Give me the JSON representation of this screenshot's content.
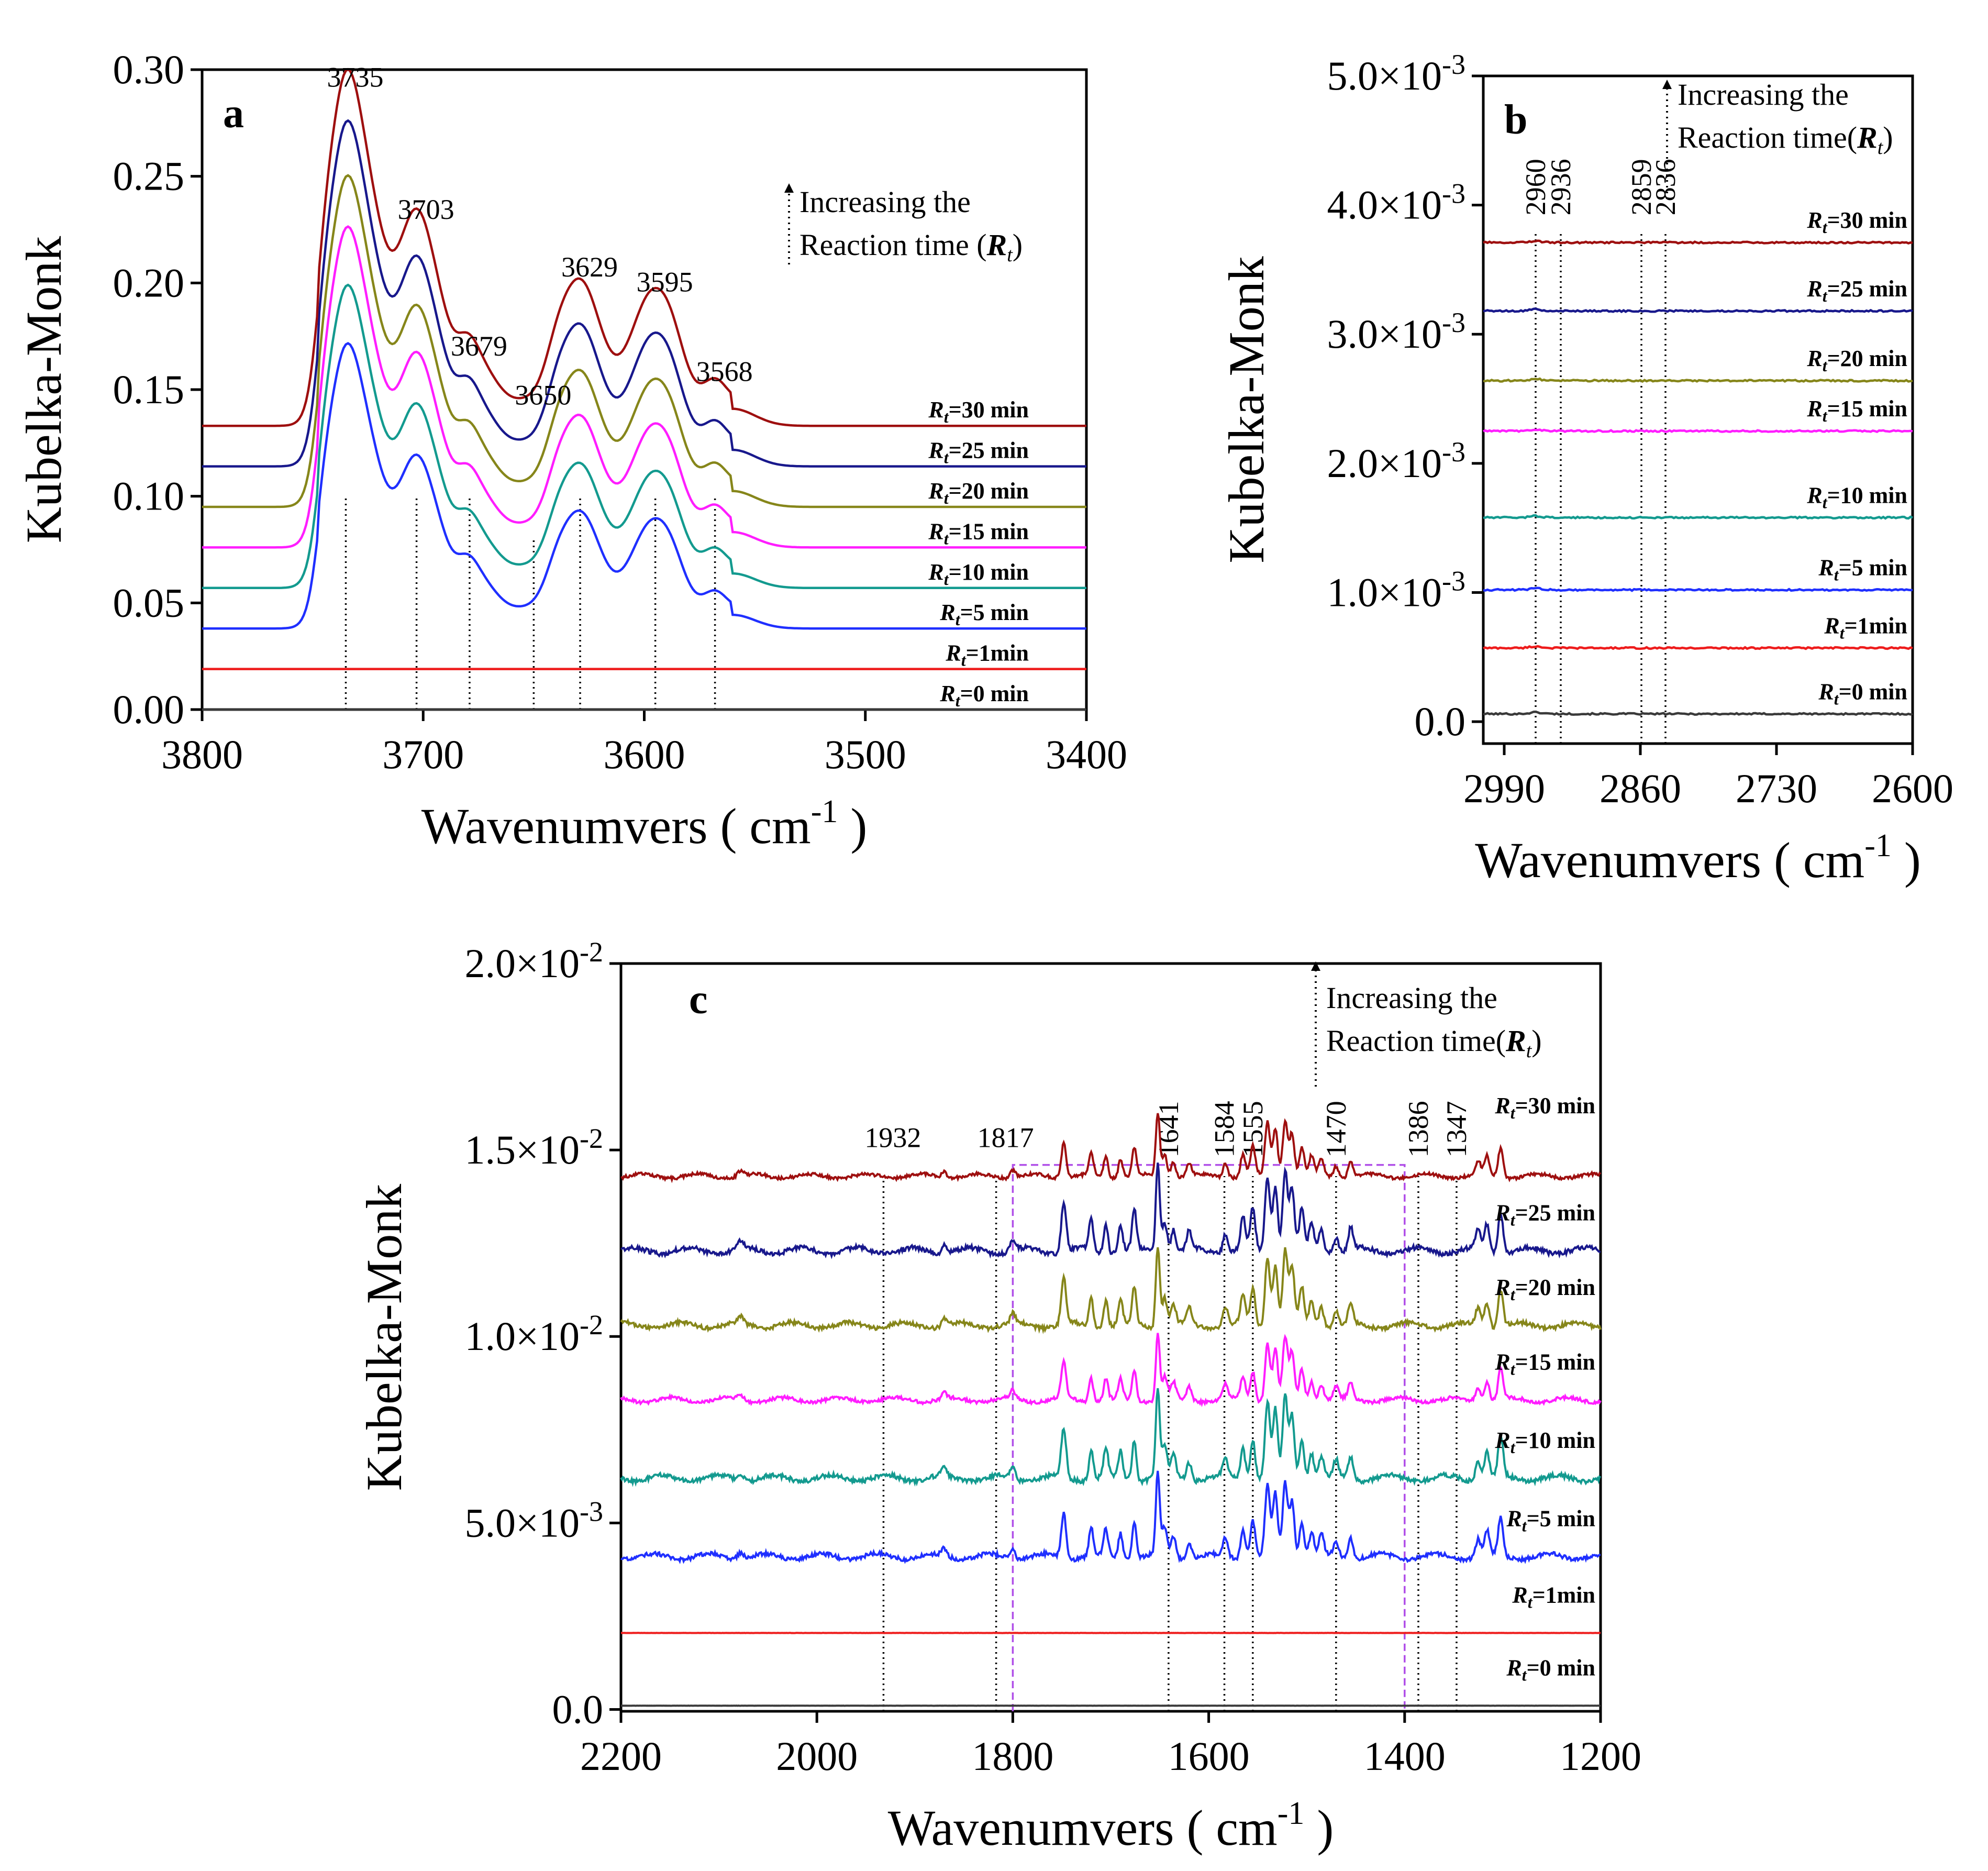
{
  "chart_data": [
    {
      "id": "a",
      "type": "line",
      "panel_label": "a",
      "xlabel": "Wavenumvers ( cm",
      "xlabel_sup": "-1",
      "xlabel_end": " )",
      "ylabel": "Kubelka-Monk",
      "xlim": [
        3800,
        3400
      ],
      "ylim": [
        0,
        0.3
      ],
      "xticks": [
        {
          "v": 3800,
          "t": "3800"
        },
        {
          "v": 3700,
          "t": "3700"
        },
        {
          "v": 3600,
          "t": "3600"
        },
        {
          "v": 3500,
          "t": "3500"
        },
        {
          "v": 3400,
          "t": "3400"
        }
      ],
      "yticks": [
        {
          "v": 0,
          "t": "0.00"
        },
        {
          "v": 0.05,
          "t": "0.05"
        },
        {
          "v": 0.1,
          "t": "0.10"
        },
        {
          "v": 0.15,
          "t": "0.15"
        },
        {
          "v": 0.2,
          "t": "0.20"
        },
        {
          "v": 0.25,
          "t": "0.25"
        },
        {
          "v": 0.3,
          "t": "0.30"
        }
      ],
      "annotation": {
        "line1": "Increasing the",
        "line2": "Reaction time (",
        "italic": "R",
        "sub": "t",
        "close": ")"
      },
      "peaks": [
        {
          "x": 3735,
          "label": "3735",
          "y_label": 0.292
        },
        {
          "x": 3703,
          "label": "3703",
          "y_label": 0.23
        },
        {
          "x": 3679,
          "label": "3679",
          "y_label": 0.166
        },
        {
          "x": 3650,
          "label": "3650",
          "y_label": 0.143
        },
        {
          "x": 3629,
          "label": "3629",
          "y_label": 0.203
        },
        {
          "x": 3595,
          "label": "3595",
          "y_label": 0.196
        },
        {
          "x": 3568,
          "label": "3568",
          "y_label": 0.154
        }
      ],
      "series": [
        {
          "name": "R_t=0 min",
          "label_main": "=0 min",
          "color": "#3a3a3a",
          "baseline": 0.0,
          "scale": 0
        },
        {
          "name": "R_t=1min",
          "label_main": "=1min",
          "color": "#ee1c1c",
          "baseline": 0.019,
          "scale": 0
        },
        {
          "name": "R_t=5 min",
          "label_main": "=5 min",
          "color": "#1f2fff",
          "baseline": 0.038,
          "scale": 0.8
        },
        {
          "name": "R_t=10 min",
          "label_main": "=10 min",
          "color": "#139a8f",
          "baseline": 0.057,
          "scale": 0.85
        },
        {
          "name": "R_t=15 min",
          "label_main": "=15 min",
          "color": "#ff1dff",
          "baseline": 0.076,
          "scale": 0.9
        },
        {
          "name": "R_t=20 min",
          "label_main": "=20 min",
          "color": "#86861a",
          "baseline": 0.095,
          "scale": 0.93
        },
        {
          "name": "R_t=25 min",
          "label_main": "=25 min",
          "color": "#18188c",
          "baseline": 0.114,
          "scale": 0.97
        },
        {
          "name": "R_t=30 min",
          "label_main": "=30 min",
          "color": "#9e0f0f",
          "baseline": 0.133,
          "scale": 1.0
        }
      ]
    },
    {
      "id": "b",
      "type": "line",
      "panel_label": "b",
      "xlabel": "Wavenumvers ( cm",
      "xlabel_sup": "-1",
      "xlabel_end": " )",
      "ylabel": "Kubelka-Monk",
      "xlim": [
        3010,
        2600
      ],
      "ylim": [
        -0.00017,
        0.005
      ],
      "xticks": [
        {
          "v": 2990,
          "t": "2990"
        },
        {
          "v": 2860,
          "t": "2860"
        },
        {
          "v": 2730,
          "t": "2730"
        },
        {
          "v": 2600,
          "t": "2600"
        }
      ],
      "yticks": [
        {
          "v": 0,
          "t": "0.0",
          "exp": ""
        },
        {
          "v": 0.001,
          "t": "1.0×10",
          "exp": "-3"
        },
        {
          "v": 0.002,
          "t": "2.0×10",
          "exp": "-3"
        },
        {
          "v": 0.003,
          "t": "3.0×10",
          "exp": "-3"
        },
        {
          "v": 0.004,
          "t": "4.0×10",
          "exp": "-3"
        },
        {
          "v": 0.005,
          "t": "5.0×10",
          "exp": "-3"
        }
      ],
      "annotation": {
        "line1": "Increasing the",
        "line2": "Reaction time(",
        "italic": "R",
        "sub": "t",
        "close": ")"
      },
      "peaks": [
        {
          "x": 2960,
          "label": "2960"
        },
        {
          "x": 2936,
          "label": "2936"
        },
        {
          "x": 2859,
          "label": "2859"
        },
        {
          "x": 2836,
          "label": "2836"
        }
      ],
      "series": [
        {
          "name": "R_t=0 min",
          "label_main": "=0 min",
          "color": "#3a3a3a",
          "baseline": 6e-05
        },
        {
          "name": "R_t=1min",
          "label_main": "=1min",
          "color": "#ee1c1c",
          "baseline": 0.00057
        },
        {
          "name": "R_t=5 min",
          "label_main": "=5 min",
          "color": "#1f2fff",
          "baseline": 0.00102
        },
        {
          "name": "R_t=10 min",
          "label_main": "=10 min",
          "color": "#139a8f",
          "baseline": 0.00158
        },
        {
          "name": "R_t=15 min",
          "label_main": "=15 min",
          "color": "#ff1dff",
          "baseline": 0.00225
        },
        {
          "name": "R_t=20 min",
          "label_main": "=20 min",
          "color": "#86861a",
          "baseline": 0.00264
        },
        {
          "name": "R_t=25 min",
          "label_main": "=25 min",
          "color": "#18188c",
          "baseline": 0.00318
        },
        {
          "name": "R_t=30 min",
          "label_main": "=30 min",
          "color": "#9e0f0f",
          "baseline": 0.00371
        }
      ]
    },
    {
      "id": "c",
      "type": "line",
      "panel_label": "c",
      "xlabel": "Wavenumvers ( cm",
      "xlabel_sup": "-1",
      "xlabel_end": " )",
      "ylabel": "Kubelka-Monk",
      "xlim": [
        2200,
        1200
      ],
      "ylim": [
        -5e-05,
        0.02
      ],
      "xticks": [
        {
          "v": 2200,
          "t": "2200"
        },
        {
          "v": 2000,
          "t": "2000"
        },
        {
          "v": 1800,
          "t": "1800"
        },
        {
          "v": 1600,
          "t": "1600"
        },
        {
          "v": 1400,
          "t": "1400"
        },
        {
          "v": 1200,
          "t": "1200"
        }
      ],
      "yticks": [
        {
          "v": 0,
          "t": "0.0",
          "exp": ""
        },
        {
          "v": 0.005,
          "t": "5.0×10",
          "exp": "-3"
        },
        {
          "v": 0.01,
          "t": "1.0×10",
          "exp": "-2"
        },
        {
          "v": 0.015,
          "t": "1.5×10",
          "exp": "-2"
        },
        {
          "v": 0.02,
          "t": "2.0×10",
          "exp": "-2"
        }
      ],
      "annotation": {
        "line1": "Increasing the",
        "line2": "Reaction time(",
        "italic": "R",
        "sub": "t",
        "close": ")"
      },
      "highlight_box": {
        "x1": 1800,
        "x2": 1400,
        "y_top": 0.0146
      },
      "peaks": [
        {
          "x": 1932,
          "label": "1932",
          "rotated": false
        },
        {
          "x": 1817,
          "label": "1817",
          "rotated": false
        },
        {
          "x": 1641,
          "label": "1641",
          "rotated": true
        },
        {
          "x": 1584,
          "label": "1584",
          "rotated": true
        },
        {
          "x": 1555,
          "label": "1555",
          "rotated": true
        },
        {
          "x": 1470,
          "label": "1470",
          "rotated": true
        },
        {
          "x": 1386,
          "label": "1386",
          "rotated": true
        },
        {
          "x": 1347,
          "label": "1347",
          "rotated": true
        }
      ],
      "series": [
        {
          "name": "R_t=0 min",
          "label_main": "=0 min",
          "color": "#3a3a3a",
          "baseline": 0.0001,
          "scale": 0
        },
        {
          "name": "R_t=1min",
          "label_main": "=1min",
          "color": "#ee1c1c",
          "baseline": 0.00205,
          "scale": 0
        },
        {
          "name": "R_t=5 min",
          "label_main": "=5 min",
          "color": "#1f2fff",
          "baseline": 0.0041,
          "scale": 0.0022
        },
        {
          "name": "R_t=10 min",
          "label_main": "=10 min",
          "color": "#139a8f",
          "baseline": 0.0062,
          "scale": 0.0024
        },
        {
          "name": "R_t=15 min",
          "label_main": "=15 min",
          "color": "#ff1dff",
          "baseline": 0.0083,
          "scale": 0.0018
        },
        {
          "name": "R_t=20 min",
          "label_main": "=20 min",
          "color": "#86861a",
          "baseline": 0.0103,
          "scale": 0.0022
        },
        {
          "name": "R_t=25 min",
          "label_main": "=25 min",
          "color": "#18188c",
          "baseline": 0.0123,
          "scale": 0.0024
        },
        {
          "name": "R_t=30 min",
          "label_main": "=30 min",
          "color": "#9e0f0f",
          "baseline": 0.0143,
          "scale": 0.0017
        }
      ]
    }
  ]
}
